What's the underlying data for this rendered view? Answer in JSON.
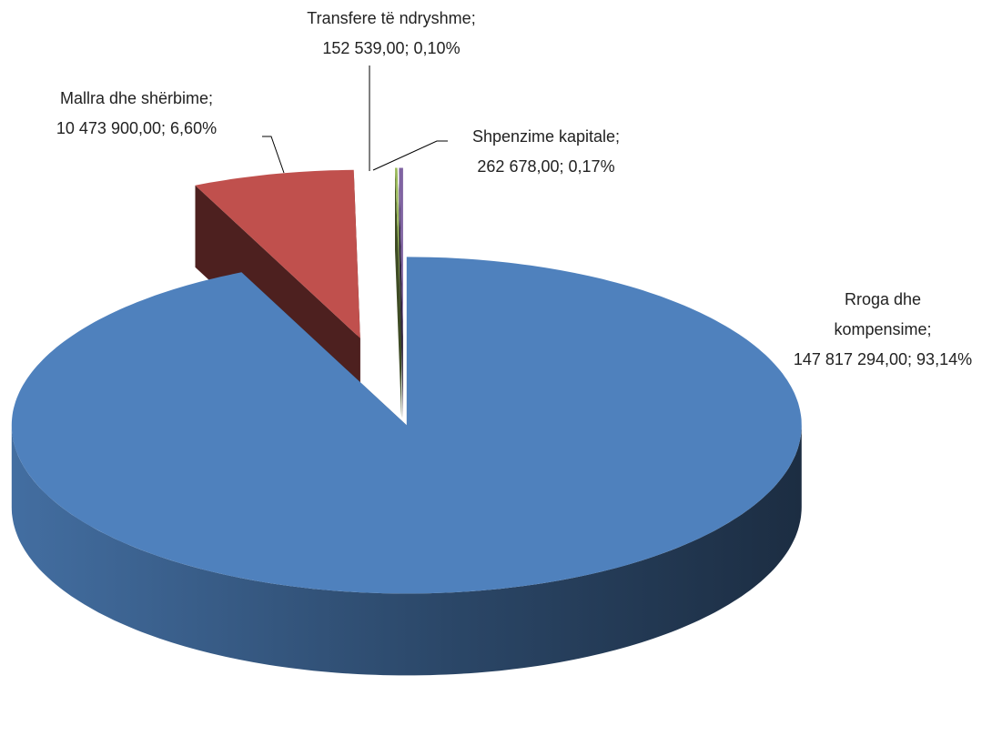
{
  "chart_data": {
    "type": "pie3d",
    "categories": [
      "Rroga dhe kompensime",
      "Mallra dhe shërbime",
      "Transfere të ndryshme",
      "Shpenzime kapitale"
    ],
    "values": [
      147817294,
      10473900,
      152539,
      262678
    ],
    "value_labels": [
      "147 817 294,00",
      "10 473 900,00",
      "152 539,00",
      "262 678,00"
    ],
    "percents": [
      93.14,
      6.6,
      0.1,
      0.17
    ],
    "percent_labels": [
      "93,14%",
      "6,60%",
      "0,10%",
      "0,17%"
    ],
    "separator": ";",
    "colors": [
      "#4f81bd",
      "#c0504d",
      "#9bbb59",
      "#8064a2"
    ]
  }
}
